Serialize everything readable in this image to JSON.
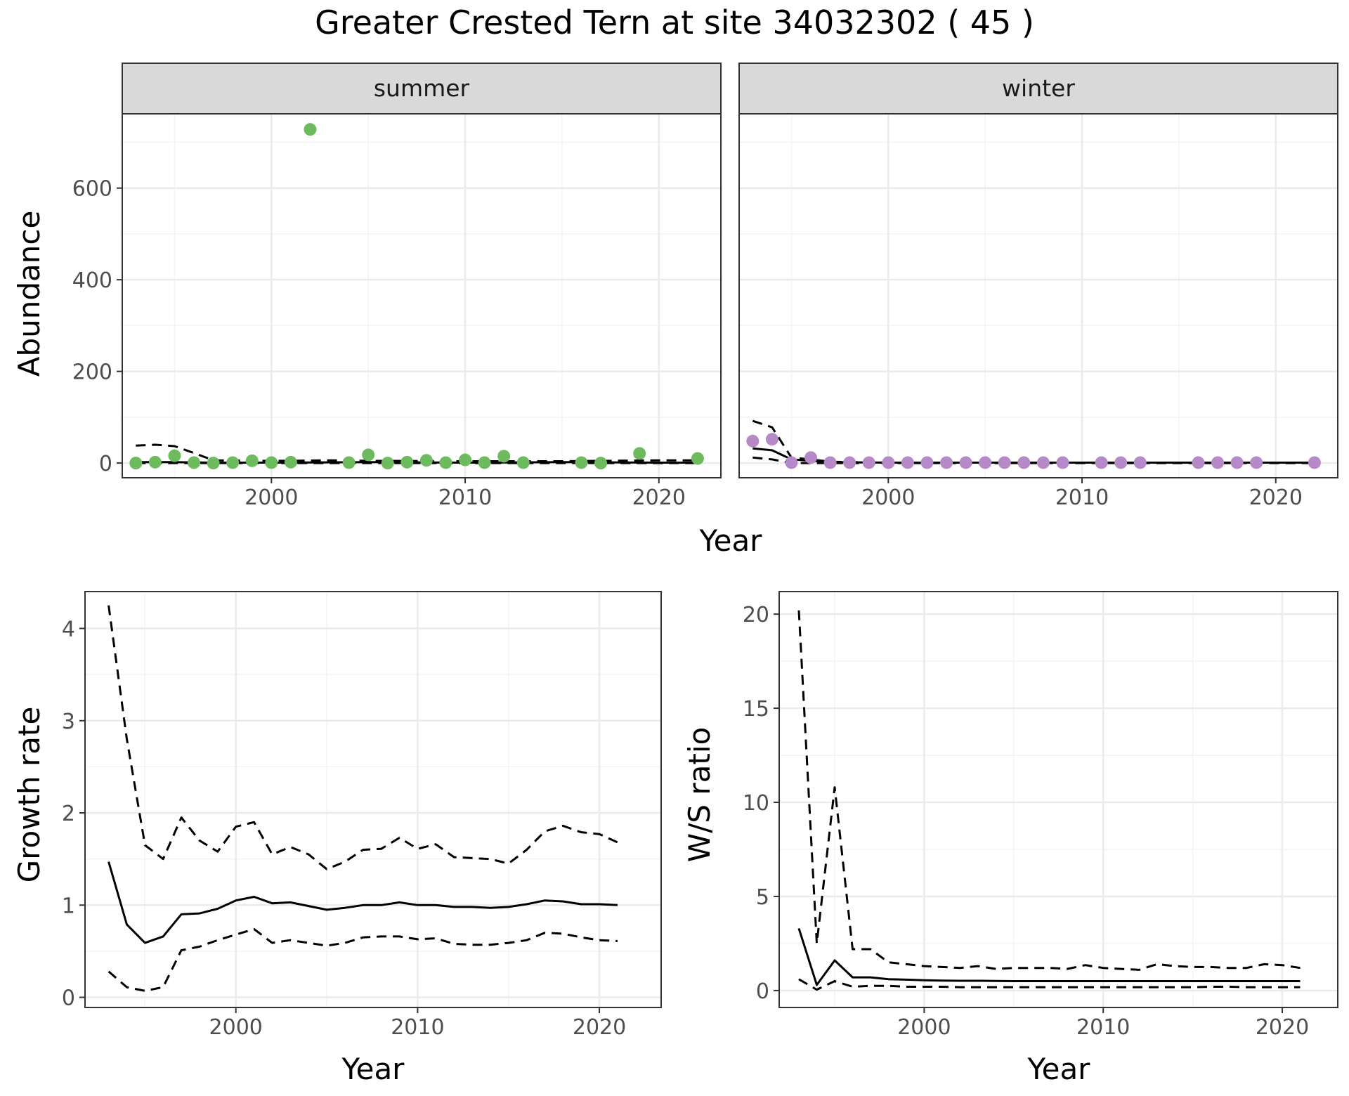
{
  "figure": {
    "title": "Greater Crested Tern at site 34032302 ( 45 )"
  },
  "colors": {
    "summer_points": "#6dbb5e",
    "winter_points": "#b58ac7",
    "line": "#000000",
    "grid_major": "#ebebeb",
    "grid_minor": "#f4f4f4",
    "strip_fill": "#d9d9d9",
    "panel_border": "#333333"
  },
  "chart_data": [
    {
      "type": "scatter",
      "panel": "abundance",
      "ylabel": "Abundance",
      "xlabel": "Year",
      "xlim": [
        1992.3,
        2023.2
      ],
      "ylim": [
        -32,
        762
      ],
      "x_ticks": [
        2000,
        2010,
        2020
      ],
      "y_ticks": [
        0,
        200,
        400,
        600
      ],
      "grid": true,
      "facets": [
        {
          "strip": "summer",
          "point_color": "summer_points",
          "points": {
            "x": [
              1993,
              1994,
              1995,
              1996,
              1997,
              1998,
              1999,
              2000,
              2001,
              2002,
              2004,
              2005,
              2006,
              2007,
              2008,
              2009,
              2010,
              2011,
              2012,
              2013,
              2016,
              2017,
              2019,
              2022
            ],
            "y": [
              0,
              2,
              16,
              1,
              0,
              1,
              5,
              1,
              2,
              728,
              1,
              18,
              0,
              2,
              6,
              1,
              7,
              1,
              15,
              1,
              1,
              0,
              21,
              10
            ]
          },
          "lines": [
            {
              "style": "solid",
              "x": [
                1993,
                1995,
                1997,
                2000,
                2005,
                2010,
                2015,
                2020,
                2022
              ],
              "y": [
                2,
                2,
                1,
                1,
                2,
                1,
                2,
                1,
                1
              ]
            },
            {
              "style": "dashed",
              "x": [
                1993,
                1994,
                1995,
                1996,
                1997,
                1999,
                2001,
                2003,
                2005,
                2010,
                2015,
                2020,
                2022
              ],
              "y": [
                38,
                40,
                37,
                22,
                6,
                5,
                5,
                6,
                5,
                4,
                4,
                6,
                6
              ]
            },
            {
              "style": "dashed",
              "x": [
                1993,
                1995,
                1997,
                2000,
                2005,
                2010,
                2015,
                2020,
                2022
              ],
              "y": [
                0,
                0,
                0,
                0,
                0,
                0,
                0,
                0,
                0
              ]
            }
          ]
        },
        {
          "strip": "winter",
          "point_color": "winter_points",
          "points": {
            "x": [
              1993,
              1994,
              1995,
              1996,
              1997,
              1998,
              1999,
              2000,
              2001,
              2002,
              2003,
              2004,
              2005,
              2006,
              2007,
              2008,
              2009,
              2011,
              2012,
              2013,
              2016,
              2017,
              2018,
              2019,
              2022
            ],
            "y": [
              48,
              52,
              1,
              12,
              1,
              1,
              1,
              1,
              1,
              1,
              1,
              1,
              1,
              1,
              1,
              1,
              1,
              1,
              1,
              1,
              1,
              1,
              1,
              1,
              1
            ]
          },
          "lines": [
            {
              "style": "solid",
              "x": [
                1993,
                1994,
                1995,
                1996,
                1997,
                2000,
                2005,
                2010,
                2015,
                2020,
                2022
              ],
              "y": [
                32,
                28,
                8,
                5,
                2,
                1,
                1,
                1,
                1,
                1,
                1
              ]
            },
            {
              "style": "dashed",
              "x": [
                1993,
                1994,
                1995,
                1996,
                1997,
                2000,
                2005,
                2010,
                2015,
                2020,
                2022
              ],
              "y": [
                92,
                78,
                12,
                8,
                3,
                1,
                1,
                1,
                1,
                1,
                1
              ]
            },
            {
              "style": "dashed",
              "x": [
                1993,
                1994,
                1995,
                1996,
                1997,
                2000,
                2005,
                2010,
                2015,
                2020,
                2022
              ],
              "y": [
                12,
                8,
                0,
                0,
                0,
                0,
                0,
                0,
                0,
                0,
                0
              ]
            }
          ]
        }
      ]
    },
    {
      "type": "line",
      "panel": "growth",
      "ylabel": "Growth rate",
      "xlabel": "Year",
      "xlim": [
        1991.7,
        2023.4
      ],
      "ylim": [
        -0.11,
        4.4
      ],
      "x_ticks": [
        2000,
        2010,
        2020
      ],
      "y_ticks": [
        0,
        1,
        2,
        3,
        4
      ],
      "grid": true,
      "series": [
        {
          "style": "solid",
          "x": [
            1993,
            1994,
            1995,
            1996,
            1997,
            1998,
            1999,
            2000,
            2001,
            2002,
            2003,
            2004,
            2005,
            2006,
            2007,
            2008,
            2009,
            2010,
            2011,
            2012,
            2013,
            2014,
            2015,
            2016,
            2017,
            2018,
            2019,
            2020,
            2021
          ],
          "y": [
            1.47,
            0.79,
            0.59,
            0.66,
            0.9,
            0.91,
            0.96,
            1.05,
            1.09,
            1.02,
            1.03,
            0.99,
            0.95,
            0.97,
            1.0,
            1.0,
            1.03,
            1.0,
            1.0,
            0.98,
            0.98,
            0.97,
            0.98,
            1.01,
            1.05,
            1.04,
            1.01,
            1.01,
            1.0
          ]
        },
        {
          "style": "dashed",
          "x": [
            1993,
            1994,
            1995,
            1996,
            1997,
            1998,
            1999,
            2000,
            2001,
            2002,
            2003,
            2004,
            2005,
            2006,
            2007,
            2008,
            2009,
            2010,
            2011,
            2012,
            2013,
            2014,
            2015,
            2016,
            2017,
            2018,
            2019,
            2020,
            2021
          ],
          "y": [
            4.25,
            2.8,
            1.65,
            1.5,
            1.95,
            1.7,
            1.58,
            1.85,
            1.9,
            1.55,
            1.63,
            1.55,
            1.39,
            1.47,
            1.6,
            1.61,
            1.73,
            1.61,
            1.66,
            1.52,
            1.51,
            1.5,
            1.45,
            1.6,
            1.8,
            1.86,
            1.79,
            1.77,
            1.68
          ]
        },
        {
          "style": "dashed",
          "x": [
            1993,
            1994,
            1995,
            1996,
            1997,
            1998,
            1999,
            2000,
            2001,
            2002,
            2003,
            2004,
            2005,
            2006,
            2007,
            2008,
            2009,
            2010,
            2011,
            2012,
            2013,
            2014,
            2015,
            2016,
            2017,
            2018,
            2019,
            2020,
            2021
          ],
          "y": [
            0.28,
            0.11,
            0.07,
            0.11,
            0.51,
            0.55,
            0.62,
            0.68,
            0.74,
            0.59,
            0.62,
            0.59,
            0.56,
            0.59,
            0.65,
            0.66,
            0.66,
            0.63,
            0.64,
            0.58,
            0.57,
            0.57,
            0.59,
            0.62,
            0.7,
            0.69,
            0.65,
            0.62,
            0.61
          ]
        }
      ]
    },
    {
      "type": "line",
      "panel": "ratio",
      "ylabel": "W/S ratio",
      "xlabel": "Year",
      "xlim": [
        1991.9,
        2023.1
      ],
      "ylim": [
        -0.9,
        21.2
      ],
      "x_ticks": [
        2000,
        2010,
        2020
      ],
      "y_ticks": [
        0,
        5,
        10,
        15,
        20
      ],
      "grid": true,
      "series": [
        {
          "style": "solid",
          "x": [
            1993,
            1994,
            1995,
            1996,
            1997,
            1998,
            1999,
            2000,
            2001,
            2002,
            2003,
            2004,
            2005,
            2006,
            2007,
            2008,
            2009,
            2010,
            2011,
            2012,
            2013,
            2014,
            2015,
            2016,
            2017,
            2018,
            2019,
            2020,
            2021
          ],
          "y": [
            3.3,
            0.3,
            1.6,
            0.7,
            0.7,
            0.6,
            0.58,
            0.55,
            0.53,
            0.52,
            0.52,
            0.51,
            0.5,
            0.5,
            0.5,
            0.5,
            0.5,
            0.5,
            0.5,
            0.5,
            0.5,
            0.5,
            0.5,
            0.5,
            0.5,
            0.5,
            0.5,
            0.5,
            0.5
          ]
        },
        {
          "style": "dashed",
          "x": [
            1993,
            1994,
            1995,
            1996,
            1997,
            1998,
            1999,
            2000,
            2001,
            2002,
            2003,
            2004,
            2005,
            2006,
            2007,
            2008,
            2009,
            2010,
            2011,
            2012,
            2013,
            2014,
            2015,
            2016,
            2017,
            2018,
            2019,
            2020,
            2021
          ],
          "y": [
            20.2,
            2.5,
            10.8,
            2.2,
            2.2,
            1.5,
            1.4,
            1.3,
            1.25,
            1.2,
            1.3,
            1.15,
            1.2,
            1.2,
            1.2,
            1.15,
            1.35,
            1.2,
            1.15,
            1.1,
            1.4,
            1.3,
            1.25,
            1.25,
            1.2,
            1.2,
            1.4,
            1.35,
            1.2
          ]
        },
        {
          "style": "dashed",
          "x": [
            1993,
            1994,
            1995,
            1996,
            1997,
            1998,
            1999,
            2000,
            2001,
            2002,
            2003,
            2004,
            2005,
            2006,
            2007,
            2008,
            2009,
            2010,
            2011,
            2012,
            2013,
            2014,
            2015,
            2016,
            2017,
            2018,
            2019,
            2020,
            2021
          ],
          "y": [
            0.6,
            0.05,
            0.5,
            0.2,
            0.25,
            0.25,
            0.2,
            0.2,
            0.2,
            0.18,
            0.18,
            0.18,
            0.18,
            0.18,
            0.18,
            0.18,
            0.18,
            0.18,
            0.18,
            0.18,
            0.18,
            0.18,
            0.18,
            0.2,
            0.2,
            0.18,
            0.18,
            0.18,
            0.18
          ]
        }
      ]
    }
  ]
}
